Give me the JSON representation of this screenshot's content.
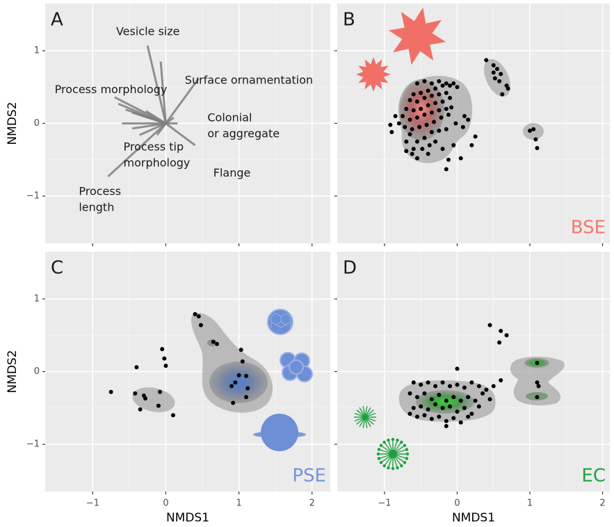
{
  "chart_data": [
    {
      "type": "biplot",
      "title": "A",
      "ylabel": "NMDS2",
      "xlim": [
        -1.65,
        2.25
      ],
      "ylim": [
        -1.65,
        1.65
      ],
      "yticks": [
        {
          "value": -1,
          "label": "−1"
        },
        0,
        1
      ],
      "vectors": {
        "x": [
          -0.25,
          -0.07,
          0.45,
          -0.7,
          -0.65,
          -0.55,
          -0.46,
          -0.36,
          -0.27,
          0.16,
          0.11,
          0.4,
          -0.79,
          -0.36,
          -0.46,
          -0.12,
          -0.6
        ],
        "y": [
          1.07,
          0.85,
          0.62,
          0.36,
          0.27,
          0.19,
          0.15,
          0.12,
          0.17,
          0.0,
          0.08,
          -0.3,
          -0.73,
          -0.16,
          -0.07,
          -0.16,
          0.0
        ]
      },
      "color": "#7f7f7f",
      "annotations": [
        {
          "lines": [
            "Vesicle size"
          ],
          "x": -0.68,
          "y": 1.26
        },
        {
          "lines": [
            "Surface ornamentation"
          ],
          "x": 0.26,
          "y": 0.59
        },
        {
          "lines": [
            "Process morphology"
          ],
          "x": -1.52,
          "y": 0.46
        },
        {
          "lines": [
            "Colonial",
            "or aggregate"
          ],
          "x": 0.57,
          "y": 0.07
        },
        {
          "lines": [
            "Process tip",
            "morphology"
          ],
          "x": -0.58,
          "y": -0.33
        },
        {
          "lines": [
            "Flange"
          ],
          "x": 0.65,
          "y": -0.69
        },
        {
          "lines": [
            "Process",
            "length"
          ],
          "x": -1.19,
          "y": -0.94
        }
      ]
    },
    {
      "type": "scatter",
      "title": "B",
      "label": "BSE",
      "label_color": "#f8766d",
      "color": "#000000",
      "xlim": [
        -1.65,
        2.1
      ],
      "ylim": [
        -1.65,
        1.65
      ],
      "x": [
        -0.55,
        -0.45,
        -0.35,
        -0.25,
        -0.2,
        -0.15,
        -0.3,
        -0.4,
        -0.5,
        -0.6,
        -0.65,
        -0.55,
        -0.45,
        -0.35,
        -0.25,
        -0.15,
        -0.1,
        -0.2,
        -0.3,
        -0.4,
        -0.5,
        -0.6,
        -0.7,
        -0.75,
        -0.65,
        -0.55,
        -0.45,
        -0.35,
        -0.25,
        -0.15,
        -0.08,
        -0.12,
        -0.22,
        -0.32,
        -0.42,
        -0.52,
        -0.62,
        -0.72,
        -0.8,
        -0.35,
        -0.25,
        -0.15,
        -0.45,
        -0.3,
        -0.65,
        -0.55,
        -0.48,
        -0.38,
        -0.7,
        -0.62,
        0.4,
        0.5,
        0.55,
        0.5,
        0.6,
        0.52,
        0.58,
        0.68,
        0.7,
        0.62,
        1.0,
        1.05,
        1.08,
        1.1,
        0.25,
        0.2,
        0.05,
        -0.15,
        -0.12,
        -0.05,
        -0.2,
        -0.4,
        -0.55,
        -0.6,
        -0.7,
        -0.9,
        -0.92,
        -0.85,
        0.15,
        0.1,
        -0.02,
        0.08,
        0.0,
        -0.05,
        -0.1
      ],
      "y": [
        0.55,
        0.58,
        0.55,
        0.58,
        0.52,
        0.55,
        0.48,
        0.45,
        0.42,
        0.4,
        0.32,
        0.3,
        0.35,
        0.38,
        0.4,
        0.42,
        0.35,
        0.3,
        0.28,
        0.25,
        0.2,
        0.18,
        0.2,
        0.1,
        0.05,
        0.08,
        0.12,
        0.15,
        0.18,
        0.2,
        0.22,
        0.12,
        0.08,
        0.02,
        -0.02,
        -0.05,
        -0.08,
        -0.05,
        0.0,
        -0.12,
        -0.1,
        -0.08,
        -0.2,
        -0.25,
        -0.15,
        -0.25,
        -0.35,
        -0.3,
        -0.38,
        -0.42,
        0.87,
        0.8,
        0.75,
        0.7,
        0.68,
        0.62,
        0.58,
        0.52,
        0.48,
        0.4,
        -0.1,
        -0.08,
        -0.22,
        -0.34,
        -0.18,
        -0.3,
        -0.48,
        -0.63,
        -0.5,
        -0.3,
        -0.35,
        -0.42,
        -0.48,
        -0.35,
        -0.25,
        -0.12,
        -0.02,
        0.1,
        0.05,
        0.1,
        0.0,
        -0.05,
        0.5,
        0.55,
        0.52
      ]
    },
    {
      "type": "scatter",
      "title": "C",
      "label": "PSE",
      "label_color": "#7393d8",
      "color": "#000000",
      "xlabel": "NMDS1",
      "ylabel": "NMDS2",
      "xlim": [
        -1.65,
        2.25
      ],
      "ylim": [
        -1.65,
        1.65
      ],
      "xticks": [
        {
          "value": -1,
          "label": "−1"
        },
        0,
        1,
        2
      ],
      "yticks": [
        {
          "value": -1,
          "label": "−1"
        },
        0,
        1
      ],
      "x": [
        -0.75,
        -0.42,
        -0.3,
        -0.28,
        -0.35,
        -0.1,
        -0.08,
        0.1,
        -0.4,
        -0.05,
        -0.02,
        0.0,
        0.4,
        0.45,
        0.48,
        0.65,
        0.7,
        1.03,
        1.0,
        0.95,
        0.9,
        1.1,
        1.12,
        1.1,
        0.92,
        1.05
      ],
      "y": [
        -0.28,
        -0.3,
        -0.33,
        -0.37,
        -0.52,
        -0.47,
        -0.28,
        -0.6,
        0.06,
        0.31,
        0.18,
        0.08,
        0.79,
        0.76,
        0.64,
        0.41,
        0.38,
        0.3,
        -0.05,
        -0.15,
        -0.2,
        -0.06,
        -0.23,
        -0.35,
        -0.43,
        0.14
      ]
    },
    {
      "type": "scatter",
      "title": "D",
      "label": "EC",
      "label_color": "#1fa040",
      "color": "#000000",
      "xlabel": "NMDS1",
      "xlim": [
        -1.65,
        2.1
      ],
      "ylim": [
        -1.65,
        1.65
      ],
      "xticks": [
        {
          "value": -1,
          "label": "−1"
        },
        0,
        1,
        2
      ],
      "x": [
        -0.6,
        -0.5,
        -0.4,
        -0.3,
        -0.2,
        -0.1,
        0.0,
        0.1,
        0.2,
        0.3,
        0.4,
        0.5,
        0.6,
        -0.65,
        -0.55,
        -0.45,
        -0.35,
        -0.25,
        -0.15,
        -0.05,
        0.05,
        0.15,
        0.25,
        0.35,
        0.45,
        -0.6,
        -0.5,
        -0.4,
        -0.3,
        -0.2,
        -0.1,
        0.0,
        0.1,
        0.2,
        0.3,
        -0.55,
        -0.45,
        -0.35,
        -0.25,
        -0.15,
        -0.05,
        0.05,
        -0.15,
        0.15,
        -0.65,
        0.45,
        0.6,
        0.68,
        0.58,
        0.0,
        1.1,
        1.1,
        1.12,
        1.1
      ],
      "y": [
        -0.15,
        -0.18,
        -0.15,
        -0.2,
        -0.15,
        -0.2,
        -0.18,
        -0.22,
        -0.15,
        -0.2,
        -0.25,
        -0.2,
        -0.12,
        -0.3,
        -0.35,
        -0.3,
        -0.38,
        -0.32,
        -0.4,
        -0.35,
        -0.4,
        -0.35,
        -0.4,
        -0.3,
        -0.38,
        -0.5,
        -0.48,
        -0.52,
        -0.45,
        -0.5,
        -0.48,
        -0.55,
        -0.5,
        -0.58,
        -0.48,
        -0.62,
        -0.6,
        -0.65,
        -0.62,
        -0.68,
        -0.64,
        -0.7,
        -0.75,
        -0.62,
        -0.58,
        0.64,
        0.56,
        0.5,
        0.4,
        0.04,
        0.12,
        -0.15,
        -0.2,
        -0.35
      ]
    }
  ]
}
